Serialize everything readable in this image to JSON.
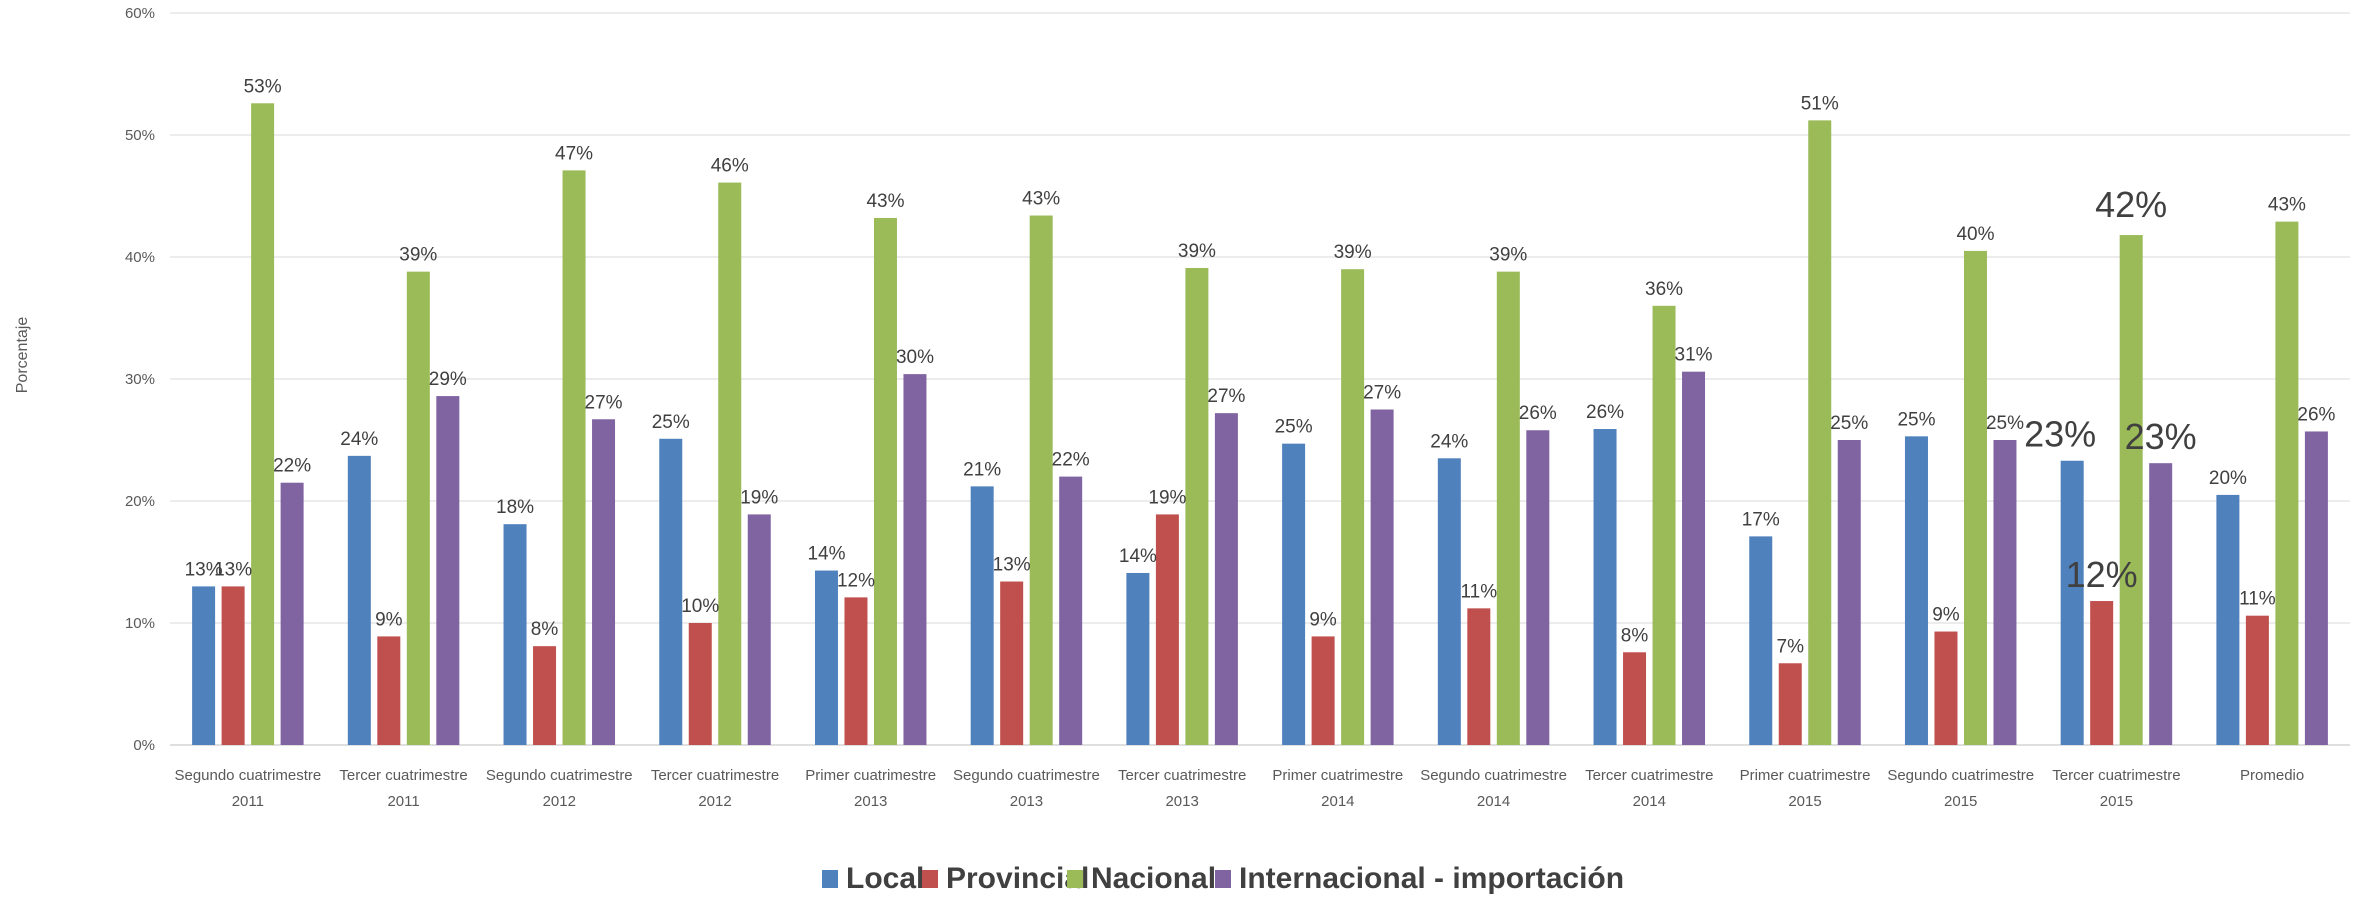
{
  "chart_data": {
    "type": "bar",
    "ylabel": "Porcentaje",
    "xlabel": "",
    "ylim": [
      0,
      60
    ],
    "yticks": [
      "0%",
      "10%",
      "20%",
      "30%",
      "40%",
      "50%",
      "60%"
    ],
    "grid": true,
    "legend_position": "bottom",
    "categories": [
      [
        "Segundo cuatrimestre",
        "2011"
      ],
      [
        "Tercer cuatrimestre",
        "2011"
      ],
      [
        "Segundo cuatrimestre",
        "2012"
      ],
      [
        "Tercer cuatrimestre",
        "2012"
      ],
      [
        "Primer cuatrimestre",
        "2013"
      ],
      [
        "Segundo cuatrimestre",
        "2013"
      ],
      [
        "Tercer cuatrimestre",
        "2013"
      ],
      [
        "Primer cuatrimestre",
        "2014"
      ],
      [
        "Segundo cuatrimestre",
        "2014"
      ],
      [
        "Tercer cuatrimestre",
        "2014"
      ],
      [
        "Primer cuatrimestre",
        "2015"
      ],
      [
        "Segundo cuatrimestre",
        "2015"
      ],
      [
        "Tercer cuatrimestre",
        "2015"
      ],
      [
        "Promedio",
        ""
      ]
    ],
    "series": [
      {
        "name": "Local",
        "color": "#4f81bd",
        "values": [
          13.0,
          23.7,
          18.1,
          25.1,
          14.3,
          21.2,
          14.1,
          24.7,
          23.5,
          25.9,
          17.1,
          25.3,
          23.3,
          20.5
        ],
        "labels": [
          "13%",
          "24%",
          "18%",
          "25%",
          "14%",
          "21%",
          "14%",
          "25%",
          "24%",
          "26%",
          "17%",
          "25%",
          "23%",
          "20%"
        ]
      },
      {
        "name": "Provincial",
        "color": "#c0504d",
        "values": [
          13.0,
          8.9,
          8.1,
          10.0,
          12.1,
          13.4,
          18.9,
          8.9,
          11.2,
          7.6,
          6.7,
          9.3,
          11.8,
          10.6
        ],
        "labels": [
          "13%",
          "9%",
          "8%",
          "10%",
          "12%",
          "13%",
          "19%",
          "9%",
          "11%",
          "8%",
          "7%",
          "9%",
          "12%",
          "11%"
        ]
      },
      {
        "name": "Nacional",
        "color": "#9bbb59",
        "values": [
          52.6,
          38.8,
          47.1,
          46.1,
          43.2,
          43.4,
          39.1,
          39.0,
          38.8,
          36.0,
          51.2,
          40.5,
          41.8,
          42.9
        ],
        "labels": [
          "53%",
          "39%",
          "47%",
          "46%",
          "43%",
          "43%",
          "39%",
          "39%",
          "39%",
          "36%",
          "51%",
          "40%",
          "42%",
          "43%"
        ]
      },
      {
        "name": "Internacional - importación",
        "color": "#8064a2",
        "values": [
          21.5,
          28.6,
          26.7,
          18.9,
          30.4,
          22.0,
          27.2,
          27.5,
          25.8,
          30.6,
          25.0,
          25.0,
          23.1,
          25.7
        ],
        "labels": [
          "22%",
          "29%",
          "27%",
          "19%",
          "30%",
          "22%",
          "27%",
          "27%",
          "26%",
          "31%",
          "25%",
          "25%",
          "23%",
          "26%"
        ]
      }
    ]
  }
}
